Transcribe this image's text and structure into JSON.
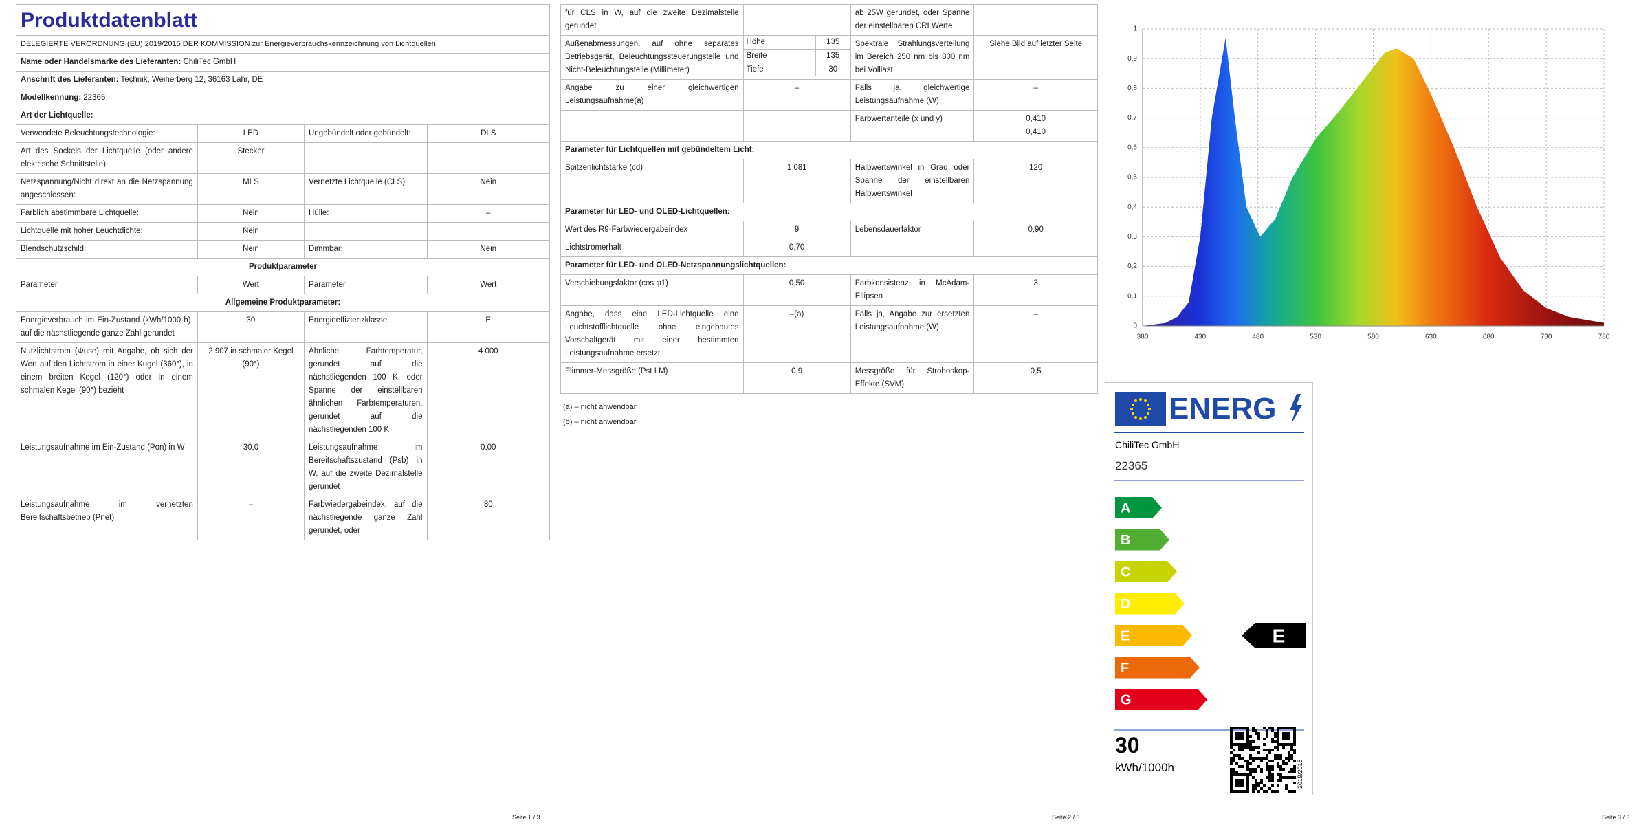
{
  "page1": {
    "title": "Produktdatenblatt",
    "intro": "DELEGIERTE VERORDNUNG (EU) 2019/2015 DER KOMMISSION zur Energieverbrauchskennzeichnung von Lichtquellen",
    "rows": [
      {
        "label": "Name oder Handelsmarke des Lieferanten:",
        "value": "ChiliTec GmbH"
      },
      {
        "label": "Anschrift des Lieferanten:",
        "value": "Technik, Weiherberg 12, 36163 Lahr, DE"
      },
      {
        "label": "Modellkennung:",
        "value": "22365"
      },
      {
        "heading": "Art der Lichtquelle:"
      },
      {
        "cells": [
          "Verwendete Beleuchtungstechnologie:",
          "LED",
          "Ungebündelt oder gebündelt:",
          "DLS"
        ]
      },
      {
        "cells": [
          "Art des Sockels der Lichtquelle (oder andere elektrische Schnittstelle)",
          "Stecker",
          null,
          null
        ]
      },
      {
        "cells": [
          "Netzspannung/Nicht direkt an die Netzspannung angeschlossen:",
          "MLS",
          "Vernetzte Lichtquelle (CLS):",
          "Nein"
        ]
      },
      {
        "cells": [
          "Farblich abstimmbare Lichtquelle:",
          "Nein",
          "Hülle:",
          "–"
        ]
      },
      {
        "cells": [
          "Lichtquelle mit hoher Leuchtdichte:",
          "Nein",
          null,
          null
        ]
      },
      {
        "cells": [
          "Blendschutzschild:",
          "Nein",
          "Dimmbar:",
          "Nein"
        ]
      },
      {
        "center": "Produktparameter"
      },
      {
        "cells": [
          "Parameter",
          "Wert",
          "Parameter",
          "Wert"
        ]
      },
      {
        "center": "Allgemeine Produktparameter:"
      },
      {
        "cells": [
          "Energieverbrauch im Ein-Zustand (kWh/1000 h), auf die nächstliegende ganze Zahl gerundet",
          "30",
          "Energieeffizienzklasse",
          "E"
        ]
      },
      {
        "cells": [
          "Nutzlichtstrom (Φuse) mit Angabe, ob sich der Wert auf den Lichtstrom in einer Kugel (360°), in einem breiten Kegel (120°) oder in einem schmalen Kegel (90°) bezieht",
          "2 907 in schmaler Kegel (90°)",
          "Ähnliche Farbtemperatur, gerundet auf die nächstliegenden 100 K, oder Spanne der einstellbaren ähnlichen Farbtemperaturen, gerundet auf die nächstliegenden 100 K",
          "4 000"
        ]
      },
      {
        "cells": [
          "Leistungsaufnahme im Ein-Zustand (Pon) in W",
          "30,0",
          "Leistungsaufnahme im Bereitschaftszustand (Psb) in W, auf die zweite Dezimalstelle gerundet",
          "0,00"
        ]
      },
      {
        "cells": [
          "Leistungsaufnahme im vernetzten Bereitschaftsbetrieb (Pnet)",
          "–",
          "Farbwiedergabeindex, auf die nächstliegende ganze Zahl gerundet, oder",
          "80"
        ]
      }
    ],
    "footer": "Seite 1 / 3"
  },
  "page2": {
    "rows": [
      {
        "cells": [
          "für CLS in W, auf die zweite Dezimalstelle gerundet",
          null,
          "ab 25W gerundet, oder Spanne der einstellbaren CRI Werte",
          null
        ]
      },
      {
        "cells": [
          "Außenabmessungen, auf ohne separates Betriebsgerät, Beleuchtungssteuerungsteile und Nicht-Beleuchtungsteile (Millimeter)",
          [
            {
              "label": "Höhe",
              "value": "135"
            },
            {
              "label": "Breite",
              "value": "135"
            },
            {
              "label": "Tiefe",
              "value": "30"
            }
          ],
          "Spektrale Strahlungsverteilung im Bereich 250 nm bis 800 nm bei Volllast",
          "Siehe Bild auf letzter Seite"
        ]
      },
      {
        "cells": [
          "Angabe zu einer gleichwertigen Leistungsaufnahme(a)",
          "–",
          "Falls ja, gleichwertige Leistungsaufnahme (W)",
          "–"
        ]
      },
      {
        "cells": [
          null,
          null,
          "Farbwertanteile (x und y)",
          "0,410\n0,410"
        ]
      },
      {
        "heading": "Parameter für Lichtquellen mit gebündeltem Licht:"
      },
      {
        "cells": [
          "Spitzenlichtstärke (cd)",
          "1 081",
          "Halbwertswinkel in Grad oder Spanne der einstellbaren Halbwertswinkel",
          "120"
        ]
      },
      {
        "heading": "Parameter für LED- und OLED-Lichtquellen:"
      },
      {
        "cells": [
          "Wert des R9-Farbwiedergabeindex",
          "9",
          "Lebensdauerfaktor",
          "0,90"
        ]
      },
      {
        "cells": [
          "Lichtstromerhalt",
          "0,70",
          null,
          null
        ]
      },
      {
        "heading": "Parameter für LED- und OLED-Netzspannungslichtquellen:"
      },
      {
        "cells": [
          "Verschiebungsfaktor (cos φ1)",
          "0,50",
          "Farbkonsistenz in McAdam-Ellipsen",
          "3"
        ]
      },
      {
        "cells": [
          "Angabe, dass eine LED-Lichtquelle eine Leuchtstofflichtquelle ohne eingebautes Vorschaltgerät mit einer bestimmten Leistungsaufnahme ersetzt.",
          "–(a)",
          "Falls ja, Angabe zur ersetzten Leistungsaufnahme (W)",
          "–"
        ]
      },
      {
        "cells": [
          "Flimmer-Messgröße (Pst LM)",
          "0,9",
          "Messgröße für Stroboskop-Effekte (SVM)",
          "0,5"
        ]
      }
    ],
    "notes": [
      "(a) – nicht anwendbar",
      "(b) – nicht anwendbar"
    ],
    "footer": "Seite 2 / 3"
  },
  "chart_data": {
    "type": "area",
    "x": [
      380,
      400,
      410,
      420,
      430,
      440,
      452,
      460,
      470,
      482,
      495,
      510,
      530,
      550,
      570,
      590,
      600,
      615,
      630,
      650,
      670,
      690,
      710,
      730,
      750,
      780
    ],
    "values": [
      0,
      0.01,
      0.03,
      0.08,
      0.3,
      0.7,
      0.97,
      0.7,
      0.4,
      0.3,
      0.36,
      0.5,
      0.63,
      0.72,
      0.82,
      0.92,
      0.935,
      0.9,
      0.78,
      0.6,
      0.4,
      0.23,
      0.12,
      0.06,
      0.03,
      0.01
    ],
    "xlim": [
      380,
      780
    ],
    "xticks": [
      380,
      430,
      480,
      530,
      580,
      630,
      680,
      730,
      780
    ],
    "ylim": [
      0,
      1
    ],
    "yticks": [
      0,
      {
        "value": 0.1,
        "label": "0,1"
      },
      {
        "value": 0.2,
        "label": "0,2"
      },
      {
        "value": 0.3,
        "label": "0,3"
      },
      {
        "value": 0.4,
        "label": "0,4"
      },
      {
        "value": 0.5,
        "label": "0,5"
      },
      {
        "value": 0.6,
        "label": "0,6"
      },
      {
        "value": 0.7,
        "label": "0,7"
      },
      {
        "value": 0.8,
        "label": "0,8"
      },
      {
        "value": 0.9,
        "label": "0,9"
      },
      1
    ],
    "grid": true
  },
  "energy_label": {
    "logo": "ENERG",
    "supplier": "ChiliTec GmbH",
    "model": "22365",
    "classes": [
      "A",
      "B",
      "C",
      "D",
      "E",
      "F",
      "G"
    ],
    "class_colors": [
      "#009640",
      "#52ae32",
      "#c8d400",
      "#ffed00",
      "#fbba00",
      "#eb6909",
      "#e2001a"
    ],
    "rating": "E",
    "consumption": "30",
    "unit": "kWh/1000h",
    "regulation": "2019/2015"
  },
  "page3_footer": "Seite 3 / 3"
}
